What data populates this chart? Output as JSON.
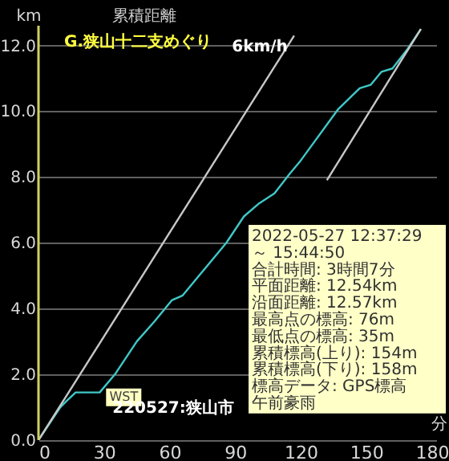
{
  "chart_data": {
    "type": "line",
    "title": "累積距離",
    "subtitle": "G.狭山十二支めぐり",
    "xlabel": "分",
    "ylabel": "km",
    "xlim": [
      0,
      182
    ],
    "ylim": [
      0,
      12.6
    ],
    "xticks": [
      0,
      30,
      60,
      90,
      120,
      150,
      180
    ],
    "yticks": [
      {
        "value": 0,
        "label": "0.0"
      },
      {
        "value": 2,
        "label": "2.0"
      },
      {
        "value": 4,
        "label": "4.0"
      },
      {
        "value": 6,
        "label": "6.0"
      },
      {
        "value": 8,
        "label": "8.0"
      },
      {
        "value": 10,
        "label": "10.0"
      },
      {
        "value": 12,
        "label": "12.0"
      }
    ],
    "grid": "y",
    "legend": false,
    "line_style": "solid",
    "series": [
      {
        "color": "#40c8c8",
        "x": [
          0,
          10,
          13,
          17,
          28,
          35,
          45,
          53,
          61,
          66,
          86,
          94,
          101,
          108,
          115,
          120,
          137,
          147,
          152,
          157,
          162,
          169,
          175
        ],
        "values": [
          0,
          1.0,
          1.2,
          1.45,
          1.45,
          2.0,
          3.0,
          3.6,
          4.25,
          4.4,
          6.0,
          6.8,
          7.2,
          7.5,
          8.1,
          8.5,
          10.05,
          10.7,
          10.8,
          11.2,
          11.3,
          11.9,
          12.5
        ]
      },
      {
        "name": "6km/h",
        "color": "#c8c8c8",
        "x": [
          0,
          117
        ],
        "values": [
          0,
          12.3
        ]
      },
      {
        "color": "#c8c8c8",
        "x": [
          132,
          175
        ],
        "values": [
          7.9,
          12.5
        ]
      }
    ],
    "annotations": [
      {
        "text": "WST",
        "x": 39,
        "y": 1.3
      },
      "2022-05-27 12:37:29",
      "～ 15:44:50",
      "合計時間: 3時間7分",
      "平面距離: 12.54km",
      "沿面距離: 12.57km",
      "最高点の標高: 76m",
      "最低点の標高: 35m",
      "累積標高(上り): 154m",
      "累積標高(下り): 158m",
      "標高データ: GPS標高",
      "午前豪雨",
      "220527:狭山市"
    ]
  }
}
